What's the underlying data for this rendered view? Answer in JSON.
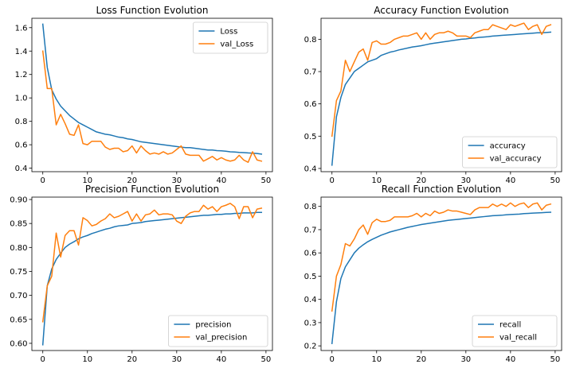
{
  "chart_data": [
    {
      "type": "line",
      "title": "Loss Function Evolution",
      "xlabel": "",
      "ylabel": "",
      "xlim": [
        -2.45,
        51.45
      ],
      "ylim": [
        0.37,
        1.68
      ],
      "xticks": [
        0,
        10,
        20,
        30,
        40,
        50
      ],
      "yticks": [
        0.4,
        0.6,
        0.8,
        1.0,
        1.2,
        1.4,
        1.6
      ],
      "ytick_decimals": 1,
      "legend": "top-right",
      "series": [
        {
          "name": "Loss",
          "color": "#1f77b4",
          "values": [
            1.63,
            1.26,
            1.07,
            0.99,
            0.93,
            0.89,
            0.85,
            0.82,
            0.79,
            0.77,
            0.75,
            0.73,
            0.71,
            0.7,
            0.69,
            0.685,
            0.675,
            0.665,
            0.66,
            0.65,
            0.645,
            0.635,
            0.625,
            0.62,
            0.615,
            0.61,
            0.605,
            0.6,
            0.595,
            0.59,
            0.585,
            0.58,
            0.575,
            0.575,
            0.57,
            0.565,
            0.56,
            0.555,
            0.555,
            0.55,
            0.548,
            0.545,
            0.54,
            0.538,
            0.535,
            0.533,
            0.53,
            0.528,
            0.525,
            0.52
          ]
        },
        {
          "name": "val_Loss",
          "color": "#ff7f0e",
          "values": [
            1.4,
            1.08,
            1.08,
            0.77,
            0.86,
            0.78,
            0.69,
            0.68,
            0.77,
            0.61,
            0.6,
            0.63,
            0.63,
            0.63,
            0.58,
            0.56,
            0.57,
            0.57,
            0.54,
            0.55,
            0.59,
            0.53,
            0.59,
            0.55,
            0.52,
            0.53,
            0.52,
            0.54,
            0.52,
            0.53,
            0.56,
            0.59,
            0.52,
            0.51,
            0.51,
            0.51,
            0.46,
            0.48,
            0.5,
            0.47,
            0.49,
            0.47,
            0.46,
            0.47,
            0.51,
            0.47,
            0.45,
            0.54,
            0.47,
            0.46
          ]
        }
      ]
    },
    {
      "type": "line",
      "title": "Accuracy Function Evolution",
      "xlabel": "",
      "ylabel": "",
      "xlim": [
        -2.45,
        51.45
      ],
      "ylim": [
        0.39,
        0.865
      ],
      "xticks": [
        0,
        10,
        20,
        30,
        40,
        50
      ],
      "yticks": [
        0.4,
        0.5,
        0.6,
        0.7,
        0.8
      ],
      "ytick_decimals": 1,
      "legend": "bottom-right",
      "series": [
        {
          "name": "accuracy",
          "color": "#1f77b4",
          "values": [
            0.41,
            0.56,
            0.62,
            0.66,
            0.68,
            0.7,
            0.71,
            0.72,
            0.73,
            0.735,
            0.74,
            0.75,
            0.755,
            0.76,
            0.763,
            0.767,
            0.77,
            0.773,
            0.776,
            0.778,
            0.78,
            0.783,
            0.786,
            0.788,
            0.79,
            0.792,
            0.794,
            0.796,
            0.798,
            0.8,
            0.801,
            0.803,
            0.804,
            0.806,
            0.807,
            0.808,
            0.81,
            0.811,
            0.812,
            0.813,
            0.814,
            0.815,
            0.816,
            0.817,
            0.818,
            0.819,
            0.82,
            0.82,
            0.821,
            0.822
          ]
        },
        {
          "name": "val_accuracy",
          "color": "#ff7f0e",
          "values": [
            0.5,
            0.61,
            0.64,
            0.735,
            0.7,
            0.73,
            0.76,
            0.77,
            0.735,
            0.79,
            0.795,
            0.785,
            0.785,
            0.79,
            0.8,
            0.805,
            0.81,
            0.81,
            0.815,
            0.82,
            0.8,
            0.82,
            0.8,
            0.815,
            0.82,
            0.82,
            0.825,
            0.82,
            0.81,
            0.81,
            0.81,
            0.805,
            0.82,
            0.825,
            0.83,
            0.83,
            0.845,
            0.84,
            0.835,
            0.83,
            0.845,
            0.84,
            0.845,
            0.85,
            0.83,
            0.84,
            0.845,
            0.815,
            0.84,
            0.845
          ]
        }
      ]
    },
    {
      "type": "line",
      "title": "Precision Function Evolution",
      "xlabel": "",
      "ylabel": "",
      "xlim": [
        -2.45,
        51.45
      ],
      "ylim": [
        0.585,
        0.905
      ],
      "xticks": [
        0,
        10,
        20,
        30,
        40,
        50
      ],
      "yticks": [
        0.6,
        0.65,
        0.7,
        0.75,
        0.8,
        0.85,
        0.9
      ],
      "ytick_decimals": 2,
      "legend": "bottom-right",
      "series": [
        {
          "name": "precision",
          "color": "#1f77b4",
          "values": [
            0.597,
            0.72,
            0.755,
            0.775,
            0.788,
            0.8,
            0.807,
            0.812,
            0.818,
            0.822,
            0.825,
            0.829,
            0.832,
            0.835,
            0.838,
            0.84,
            0.843,
            0.845,
            0.846,
            0.847,
            0.85,
            0.851,
            0.852,
            0.854,
            0.855,
            0.856,
            0.857,
            0.858,
            0.859,
            0.86,
            0.861,
            0.862,
            0.863,
            0.864,
            0.865,
            0.866,
            0.867,
            0.867,
            0.868,
            0.869,
            0.869,
            0.87,
            0.87,
            0.871,
            0.871,
            0.872,
            0.872,
            0.872,
            0.873,
            0.873
          ]
        },
        {
          "name": "val_precision",
          "color": "#ff7f0e",
          "values": [
            0.645,
            0.72,
            0.74,
            0.83,
            0.78,
            0.825,
            0.835,
            0.835,
            0.805,
            0.862,
            0.856,
            0.845,
            0.848,
            0.855,
            0.86,
            0.87,
            0.862,
            0.865,
            0.87,
            0.875,
            0.855,
            0.87,
            0.855,
            0.868,
            0.87,
            0.878,
            0.868,
            0.87,
            0.87,
            0.868,
            0.855,
            0.85,
            0.865,
            0.872,
            0.875,
            0.875,
            0.888,
            0.88,
            0.885,
            0.875,
            0.885,
            0.888,
            0.892,
            0.885,
            0.86,
            0.885,
            0.885,
            0.862,
            0.88,
            0.882
          ]
        }
      ]
    },
    {
      "type": "line",
      "title": "Recall Function Evolution",
      "xlabel": "",
      "ylabel": "",
      "xlim": [
        -2.45,
        51.45
      ],
      "ylim": [
        0.18,
        0.84
      ],
      "xticks": [
        0,
        10,
        20,
        30,
        40,
        50
      ],
      "yticks": [
        0.2,
        0.3,
        0.4,
        0.5,
        0.6,
        0.7,
        0.8
      ],
      "ytick_decimals": 1,
      "legend": "bottom-right",
      "series": [
        {
          "name": "recall",
          "color": "#1f77b4",
          "values": [
            0.21,
            0.39,
            0.49,
            0.54,
            0.57,
            0.6,
            0.62,
            0.635,
            0.648,
            0.658,
            0.667,
            0.676,
            0.683,
            0.69,
            0.695,
            0.7,
            0.705,
            0.71,
            0.714,
            0.718,
            0.722,
            0.725,
            0.728,
            0.731,
            0.734,
            0.737,
            0.74,
            0.742,
            0.744,
            0.746,
            0.748,
            0.75,
            0.752,
            0.754,
            0.756,
            0.758,
            0.76,
            0.761,
            0.762,
            0.764,
            0.765,
            0.766,
            0.767,
            0.769,
            0.77,
            0.771,
            0.772,
            0.773,
            0.774,
            0.775
          ]
        },
        {
          "name": "val_recall",
          "color": "#ff7f0e",
          "values": [
            0.35,
            0.5,
            0.55,
            0.64,
            0.63,
            0.66,
            0.7,
            0.72,
            0.68,
            0.73,
            0.745,
            0.735,
            0.735,
            0.74,
            0.755,
            0.755,
            0.755,
            0.755,
            0.76,
            0.77,
            0.755,
            0.77,
            0.76,
            0.78,
            0.77,
            0.775,
            0.785,
            0.78,
            0.78,
            0.775,
            0.77,
            0.765,
            0.785,
            0.795,
            0.795,
            0.795,
            0.81,
            0.8,
            0.81,
            0.8,
            0.815,
            0.8,
            0.81,
            0.815,
            0.795,
            0.81,
            0.815,
            0.785,
            0.805,
            0.81
          ]
        }
      ]
    }
  ]
}
